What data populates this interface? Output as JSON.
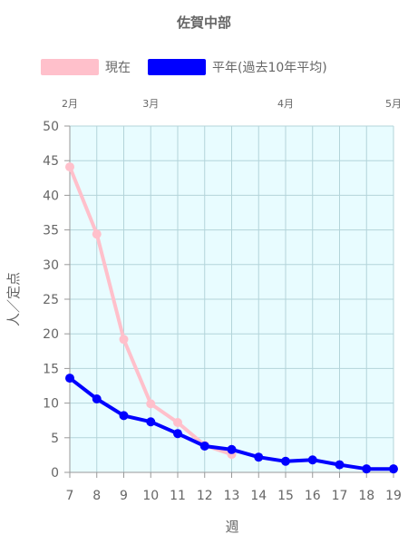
{
  "chart_data": {
    "type": "line",
    "title": "佐賀中部",
    "xlabel": "週",
    "ylabel": "人／定点",
    "x": [
      7,
      8,
      9,
      10,
      11,
      12,
      13,
      14,
      15,
      16,
      17,
      18,
      19
    ],
    "xlim": [
      7,
      19
    ],
    "ylim": [
      0,
      50
    ],
    "yticks": [
      0,
      5,
      10,
      15,
      20,
      25,
      30,
      35,
      40,
      45,
      50
    ],
    "grid": true,
    "plot_background": "#e8fcff",
    "legend_position": "top",
    "month_labels": [
      {
        "label": "2月",
        "week": 7
      },
      {
        "label": "3月",
        "week": 10
      },
      {
        "label": "4月",
        "week": 15
      },
      {
        "label": "5月",
        "week": 19
      }
    ],
    "series": [
      {
        "name": "現在",
        "color": "#ffc0cb",
        "x": [
          7,
          8,
          9,
          10,
          11,
          12,
          13
        ],
        "values": [
          44.1,
          34.4,
          19.2,
          9.9,
          7.2,
          3.9,
          2.6
        ]
      },
      {
        "name": "平年(過去10年平均)",
        "color": "#0000ff",
        "x": [
          7,
          8,
          9,
          10,
          11,
          12,
          13,
          14,
          15,
          16,
          17,
          18,
          19
        ],
        "values": [
          13.6,
          10.6,
          8.2,
          7.3,
          5.6,
          3.8,
          3.3,
          2.2,
          1.6,
          1.8,
          1.1,
          0.5,
          0.5
        ]
      }
    ]
  }
}
